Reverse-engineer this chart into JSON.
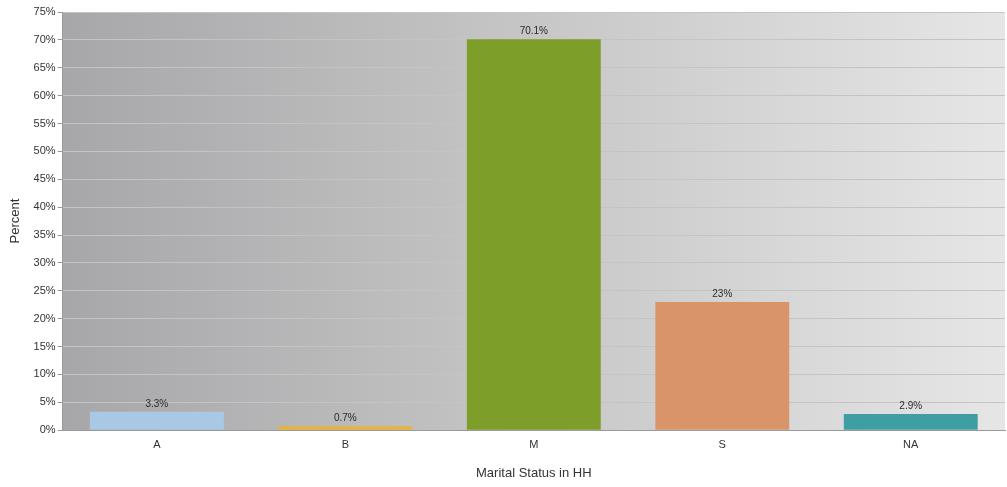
{
  "chart_data": {
    "type": "bar",
    "xlabel": "Marital Status in HH",
    "ylabel": "Percent",
    "categories": [
      "A",
      "B",
      "M",
      "S",
      "NA"
    ],
    "values": [
      3.3,
      0.7,
      70.1,
      23,
      2.9
    ],
    "colors": [
      "#a9c8e6",
      "#e6b43a",
      "#7e9e2a",
      "#d9946a",
      "#3e9ea2"
    ],
    "value_labels": [
      "3.3%",
      "0.7%",
      "70.1%",
      "23%",
      "2.9%"
    ],
    "ylim": [
      0,
      75
    ],
    "yticks": [
      {
        "value": 0,
        "label": "0%"
      },
      {
        "value": 5,
        "label": "5%"
      },
      {
        "value": 10,
        "label": "10%"
      },
      {
        "value": 15,
        "label": "15%"
      },
      {
        "value": 20,
        "label": "20%"
      },
      {
        "value": 25,
        "label": "25%"
      },
      {
        "value": 30,
        "label": "30%"
      },
      {
        "value": 35,
        "label": "35%"
      },
      {
        "value": 40,
        "label": "40%"
      },
      {
        "value": 45,
        "label": "45%"
      },
      {
        "value": 50,
        "label": "50%"
      },
      {
        "value": 55,
        "label": "55%"
      },
      {
        "value": 60,
        "label": "60%"
      },
      {
        "value": 65,
        "label": "65%"
      },
      {
        "value": 70,
        "label": "70%"
      },
      {
        "value": 75,
        "label": "75%"
      }
    ],
    "grid": "y"
  }
}
